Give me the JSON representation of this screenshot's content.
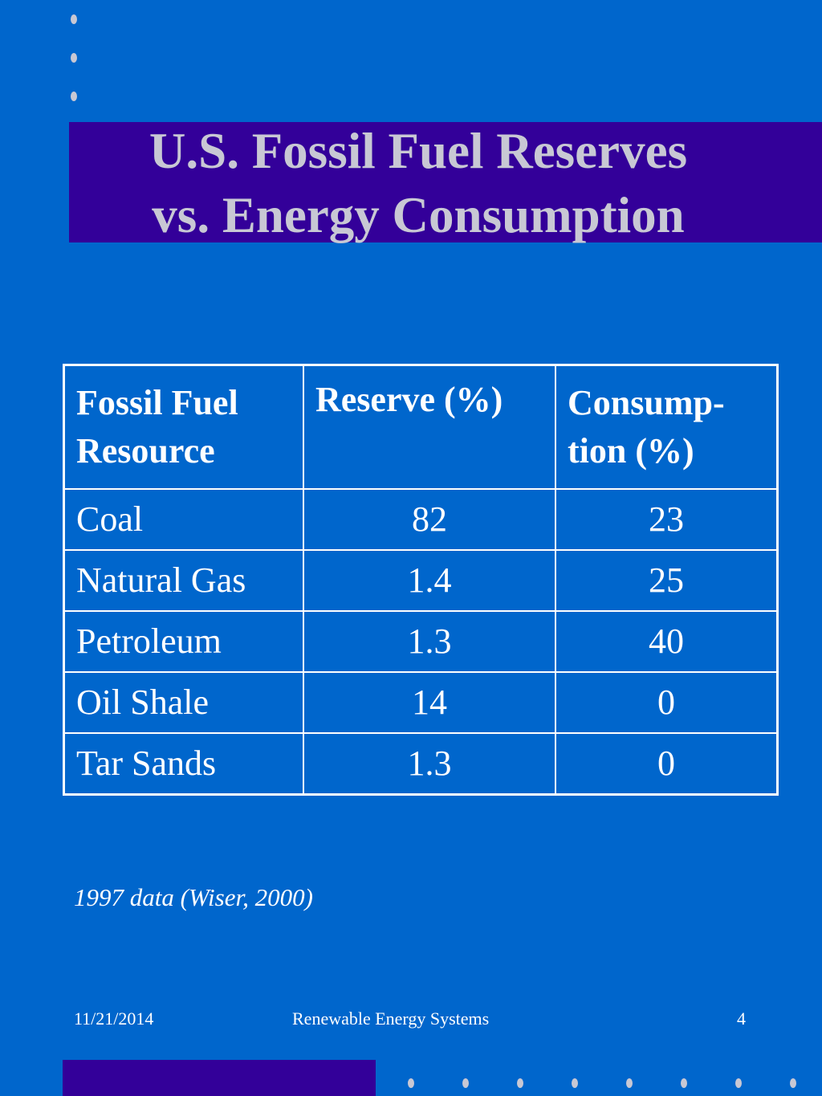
{
  "slide": {
    "title_line1": "U.S. Fossil Fuel Reserves",
    "title_line2": "vs. Energy Consumption",
    "table": {
      "headers": {
        "resource_line1": "Fossil Fuel",
        "resource_line2": "Resource",
        "reserve": "Reserve (%)",
        "consumption_line1": "Consump-",
        "consumption_line2": "tion (%)"
      },
      "rows": [
        {
          "resource": "Coal",
          "reserve": "82",
          "consumption": "23"
        },
        {
          "resource": "Natural Gas",
          "reserve": "1.4",
          "consumption": "25"
        },
        {
          "resource": "Petroleum",
          "reserve": "1.3",
          "consumption": "40"
        },
        {
          "resource": "Oil Shale",
          "reserve": "14",
          "consumption": "0"
        },
        {
          "resource": "Tar Sands",
          "reserve": "1.3",
          "consumption": "0"
        }
      ]
    },
    "source_note": "1997 data (Wiser, 2000)"
  },
  "footer": {
    "date": "11/21/2014",
    "title": "Renewable Energy Systems",
    "page": "4"
  },
  "colors": {
    "background": "#0066cc",
    "title_band": "#330099",
    "title_text": "#c8c8d4",
    "text": "#ffffff"
  }
}
